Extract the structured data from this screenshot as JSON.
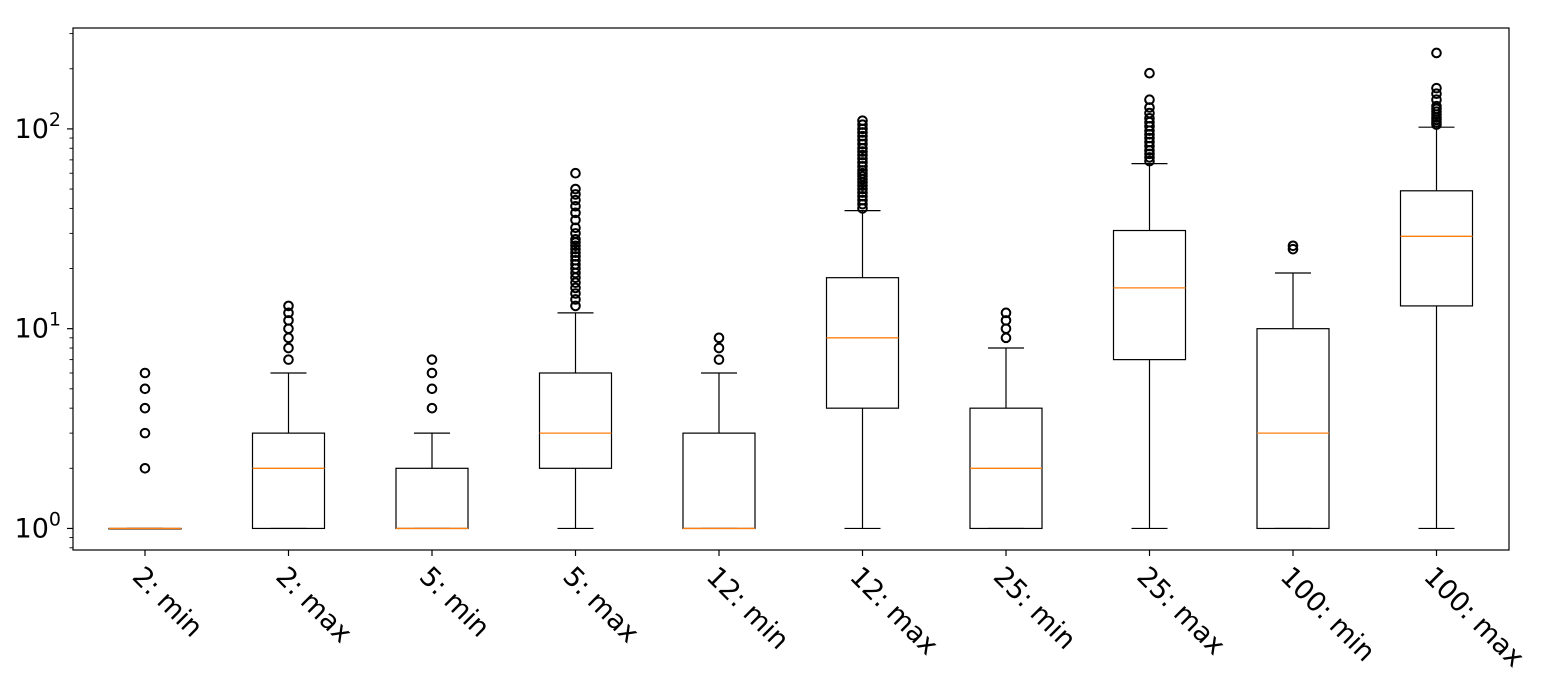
{
  "chart_data": {
    "type": "boxplot",
    "title": "",
    "xlabel": "",
    "ylabel": "",
    "yscale": "log",
    "ylim": [
      0.78,
      320
    ],
    "y_ticks": [
      {
        "value": 1,
        "base": "10",
        "exp": "0"
      },
      {
        "value": 10,
        "base": "10",
        "exp": "1"
      },
      {
        "value": 100,
        "base": "10",
        "exp": "2"
      }
    ],
    "colors": {
      "box": "#000000",
      "median": "#ff7f0e",
      "outlier": "#000000"
    },
    "categories": [
      "2: min",
      "2: max",
      "5: min",
      "5: max",
      "12: min",
      "12: max",
      "25: min",
      "25: max",
      "100: min",
      "100: max"
    ],
    "boxes": [
      {
        "label": "2: min",
        "whisker_low": 1,
        "q1": 1,
        "median": 1,
        "q3": 1,
        "whisker_high": 1,
        "outliers": [
          2,
          3,
          4,
          5,
          6
        ]
      },
      {
        "label": "2: max",
        "whisker_low": 1,
        "q1": 1,
        "median": 2,
        "q3": 3,
        "whisker_high": 6,
        "outliers": [
          7,
          8,
          9,
          10,
          11,
          12,
          13
        ]
      },
      {
        "label": "5: min",
        "whisker_low": 1,
        "q1": 1,
        "median": 1,
        "q3": 2,
        "whisker_high": 3,
        "outliers": [
          4,
          5,
          6,
          7
        ]
      },
      {
        "label": "5: max",
        "whisker_low": 1,
        "q1": 2,
        "median": 3,
        "q3": 6,
        "whisker_high": 12,
        "outliers": [
          13,
          14,
          15,
          16,
          17,
          18,
          19,
          20,
          21,
          22,
          23,
          24,
          25,
          26,
          27,
          28,
          30,
          32,
          35,
          38,
          41,
          44,
          47,
          50,
          60
        ]
      },
      {
        "label": "12: min",
        "whisker_low": 1,
        "q1": 1,
        "median": 1,
        "q3": 3,
        "whisker_high": 6,
        "outliers": [
          7,
          8,
          9
        ]
      },
      {
        "label": "12: max",
        "whisker_low": 1,
        "q1": 4,
        "median": 9,
        "q3": 18,
        "whisker_high": 39,
        "outliers": [
          40,
          42,
          44,
          46,
          48,
          50,
          52,
          54,
          56,
          58,
          60,
          62,
          65,
          68,
          71,
          74,
          77,
          80,
          84,
          88,
          92,
          96,
          100,
          105,
          110
        ]
      },
      {
        "label": "25: min",
        "whisker_low": 1,
        "q1": 1,
        "median": 2,
        "q3": 4,
        "whisker_high": 8,
        "outliers": [
          9,
          10,
          11,
          12
        ]
      },
      {
        "label": "25: max",
        "whisker_low": 1,
        "q1": 7,
        "median": 16,
        "q3": 31,
        "whisker_high": 67,
        "outliers": [
          69,
          72,
          75,
          78,
          82,
          86,
          90,
          94,
          98,
          103,
          108,
          113,
          120,
          128,
          140,
          190
        ]
      },
      {
        "label": "100: min",
        "whisker_low": 1,
        "q1": 1,
        "median": 3,
        "q3": 10,
        "whisker_high": 19,
        "outliers": [
          25,
          26
        ]
      },
      {
        "label": "100: max",
        "whisker_low": 1,
        "q1": 13,
        "median": 29,
        "q3": 49,
        "whisker_high": 102,
        "outliers": [
          105,
          108,
          111,
          114,
          118,
          122,
          126,
          130,
          140,
          150,
          160,
          240
        ]
      }
    ]
  }
}
